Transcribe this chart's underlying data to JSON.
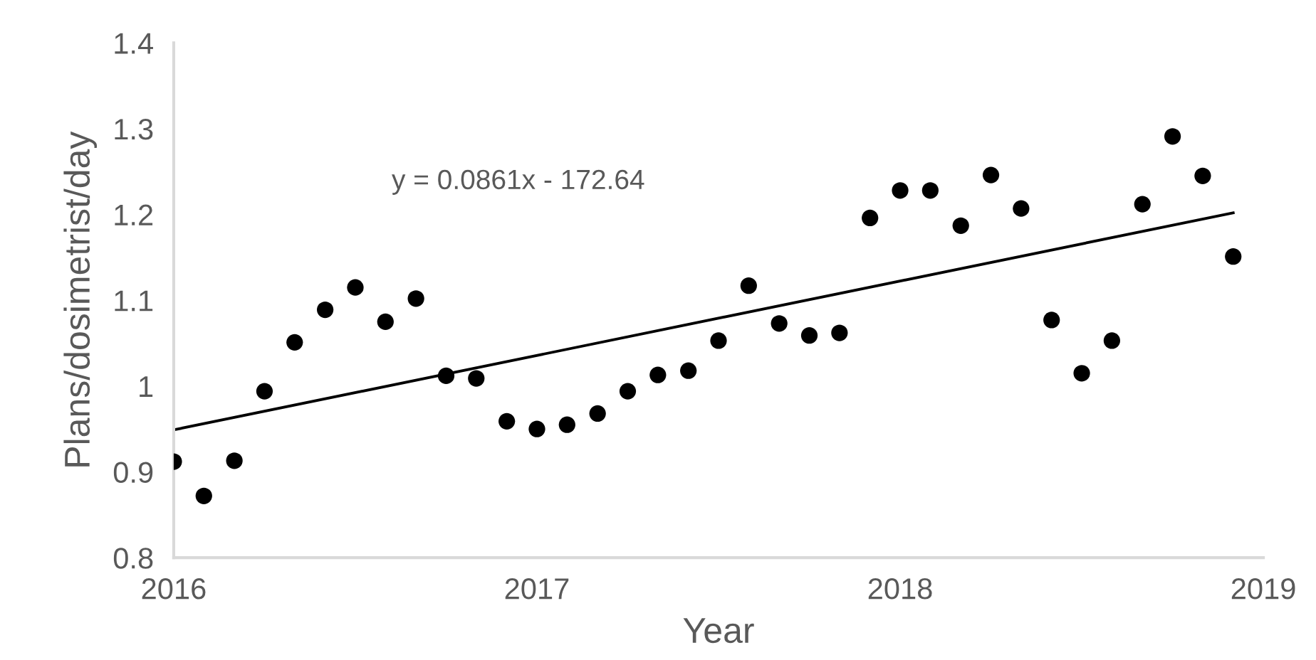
{
  "chart_data": {
    "type": "scatter",
    "xlabel": "Year",
    "ylabel": "Plans/dosimetrist/day",
    "xlim": [
      2016,
      2019
    ],
    "xticks": [
      2016,
      2017,
      2018,
      2019
    ],
    "ylim": [
      0.8,
      1.4
    ],
    "yticks": [
      0.8,
      0.9,
      1,
      1.1,
      1.2,
      1.3,
      1.4
    ],
    "grid": false,
    "legend": false,
    "annotations": [
      "y = 0.0861x - 172.64"
    ],
    "series": [
      {
        "color": "#000000",
        "marker": "circle",
        "x": [
          2016.0,
          2016.083,
          2016.167,
          2016.25,
          2016.333,
          2016.417,
          2016.5,
          2016.583,
          2016.667,
          2016.75,
          2016.833,
          2016.917,
          2017.0,
          2017.083,
          2017.167,
          2017.25,
          2017.333,
          2017.417,
          2017.5,
          2017.583,
          2017.667,
          2017.75,
          2017.833,
          2017.917,
          2018.0,
          2018.083,
          2018.167,
          2018.25,
          2018.333,
          2018.417,
          2018.5,
          2018.583,
          2018.667,
          2018.75,
          2018.833,
          2018.917
        ],
        "values": [
          0.912,
          0.872,
          0.913,
          0.994,
          1.051,
          1.089,
          1.115,
          1.075,
          1.102,
          1.012,
          1.009,
          0.959,
          0.95,
          0.955,
          0.968,
          0.994,
          1.013,
          1.018,
          1.053,
          1.117,
          1.073,
          1.059,
          1.062,
          1.196,
          1.228,
          1.228,
          1.187,
          1.246,
          1.207,
          1.077,
          1.015,
          1.053,
          1.212,
          1.291,
          1.245,
          1.151
        ]
      },
      {
        "type": "line",
        "color": "#000000",
        "marker": "none",
        "line_style": "solid",
        "x": [
          2016.0,
          2018.917
        ],
        "values": [
          0.949,
          1.202
        ]
      }
    ]
  }
}
